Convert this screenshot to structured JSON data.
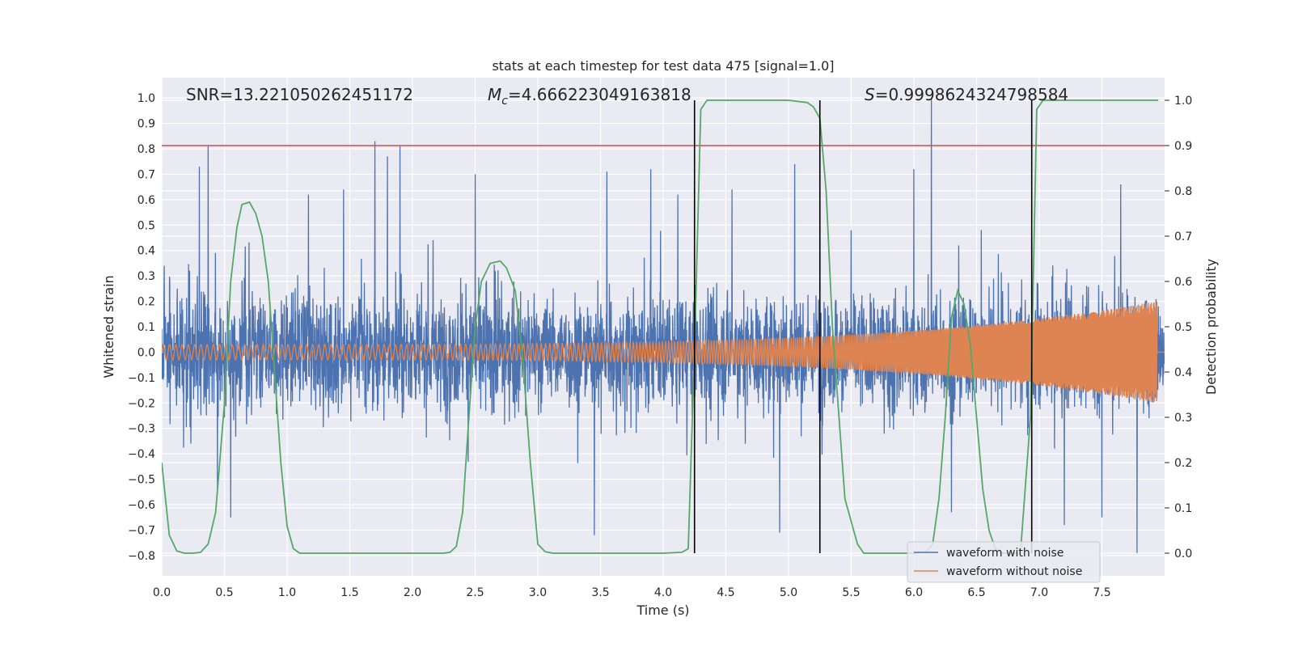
{
  "chart_data": {
    "type": "line",
    "title": "stats at each timestep for test data 475 [signal=1.0]",
    "xlabel": "Time (s)",
    "ylabel": "Whitened strain",
    "ylabel_right": "Detection probability",
    "xlim": [
      0.0,
      8.0
    ],
    "ylim": [
      -0.88,
      1.08
    ],
    "ylim_right": [
      -0.05,
      1.05
    ],
    "x_ticks": [
      "0.0",
      "0.5",
      "1.0",
      "1.5",
      "2.0",
      "2.5",
      "3.0",
      "3.5",
      "4.0",
      "4.5",
      "5.0",
      "5.5",
      "6.0",
      "6.5",
      "7.0",
      "7.5"
    ],
    "x_tick_values": [
      0.0,
      0.5,
      1.0,
      1.5,
      2.0,
      2.5,
      3.0,
      3.5,
      4.0,
      4.5,
      5.0,
      5.5,
      6.0,
      6.5,
      7.0,
      7.5
    ],
    "y_ticks": [
      "1.0",
      "0.9",
      "0.8",
      "0.7",
      "0.6",
      "0.5",
      "0.4",
      "0.3",
      "0.2",
      "0.1",
      "0.0",
      "−0.1",
      "−0.2",
      "−0.3",
      "−0.4",
      "−0.5",
      "−0.6",
      "−0.7",
      "−0.8"
    ],
    "y_tick_values": [
      1.0,
      0.9,
      0.8,
      0.7,
      0.6,
      0.5,
      0.4,
      0.3,
      0.2,
      0.1,
      0.0,
      -0.1,
      -0.2,
      -0.3,
      -0.4,
      -0.5,
      -0.6,
      -0.7,
      -0.8
    ],
    "y_ticks_right": [
      "1.0",
      "0.9",
      "0.8",
      "0.7",
      "0.6",
      "0.5",
      "0.4",
      "0.3",
      "0.2",
      "0.1",
      "0.0"
    ],
    "y_tick_values_right": [
      1.0,
      0.9,
      0.8,
      0.7,
      0.6,
      0.5,
      0.4,
      0.3,
      0.2,
      0.1,
      0.0
    ],
    "grid": true,
    "background": "#eaeaf2",
    "annotations": {
      "snr": "SNR=13.221050262451172",
      "mc_symbol": "M",
      "mc_sub": "c",
      "mc_value": "=4.666223049163818",
      "s_symbol": "S",
      "s_value": "=0.9998624324798584"
    },
    "threshold": {
      "value": 0.9,
      "axis": "right",
      "color": "#c44e52"
    },
    "vertical_lines": {
      "x": [
        4.25,
        5.25,
        6.94
      ],
      "color": "#000000"
    },
    "legend": {
      "position": "lower-right",
      "entries": [
        {
          "label": "waveform with noise",
          "color": "#4c72b0"
        },
        {
          "label": "waveform without noise",
          "color": "#dd8452"
        }
      ]
    },
    "series": [
      {
        "name": "waveform with noise",
        "axis": "left",
        "color": "#4c72b0",
        "kind": "noise",
        "x_range": [
          0.0,
          8.0
        ],
        "typical_envelope": [
          -0.45,
          0.45
        ],
        "peaks": [
          {
            "x": 0.02,
            "y": 0.34
          },
          {
            "x": 0.3,
            "y": 0.73
          },
          {
            "x": 0.37,
            "y": 0.81
          },
          {
            "x": 0.55,
            "y": -0.65
          },
          {
            "x": 1.17,
            "y": 0.62
          },
          {
            "x": 1.45,
            "y": 0.64
          },
          {
            "x": 1.7,
            "y": 0.83
          },
          {
            "x": 1.8,
            "y": 0.77
          },
          {
            "x": 1.9,
            "y": 0.81
          },
          {
            "x": 2.5,
            "y": 0.7
          },
          {
            "x": 3.45,
            "y": -0.72
          },
          {
            "x": 3.55,
            "y": 0.71
          },
          {
            "x": 3.9,
            "y": 0.72
          },
          {
            "x": 4.55,
            "y": 0.64
          },
          {
            "x": 4.93,
            "y": -0.71
          },
          {
            "x": 5.05,
            "y": 0.74
          },
          {
            "x": 5.5,
            "y": 0.48
          },
          {
            "x": 6.14,
            "y": 1.0
          },
          {
            "x": 6.0,
            "y": 0.72
          },
          {
            "x": 6.3,
            "y": -0.63
          },
          {
            "x": 7.2,
            "y": -0.68
          },
          {
            "x": 7.5,
            "y": -0.65
          },
          {
            "x": 7.78,
            "y": -0.79
          },
          {
            "x": 7.65,
            "y": 0.66
          }
        ]
      },
      {
        "name": "waveform without noise",
        "axis": "left",
        "color": "#dd8452",
        "kind": "chirp",
        "x_range": [
          0.0,
          7.94
        ],
        "amplitude_start": 0.03,
        "amplitude_end": 0.2,
        "freq_start_hz": 20,
        "freq_end_hz": 180,
        "after_merger_value": 0.0,
        "end_x": 8.0
      },
      {
        "name": "detection probability",
        "axis": "right",
        "color": "#55a868",
        "kind": "line",
        "x": [
          0.0,
          0.06,
          0.12,
          0.18,
          0.25,
          0.31,
          0.37,
          0.43,
          0.5,
          0.55,
          0.6,
          0.64,
          0.7,
          0.75,
          0.8,
          0.85,
          0.9,
          0.95,
          1.0,
          1.05,
          1.1,
          1.5,
          2.0,
          2.25,
          2.3,
          2.35,
          2.4,
          2.45,
          2.5,
          2.55,
          2.62,
          2.7,
          2.75,
          2.82,
          2.88,
          2.94,
          3.0,
          3.06,
          3.12,
          3.5,
          4.0,
          4.15,
          4.2,
          4.25,
          4.3,
          4.35,
          5.0,
          5.15,
          5.2,
          5.25,
          5.3,
          5.35,
          5.45,
          5.55,
          5.6,
          5.65,
          5.7,
          6.0,
          6.1,
          6.15,
          6.2,
          6.25,
          6.3,
          6.35,
          6.4,
          6.45,
          6.5,
          6.55,
          6.6,
          6.65,
          6.7,
          6.85,
          6.93,
          6.98,
          7.03,
          7.5,
          7.95
        ],
        "y": [
          0.2,
          0.04,
          0.005,
          0.0,
          0.0,
          0.002,
          0.02,
          0.09,
          0.33,
          0.6,
          0.72,
          0.77,
          0.775,
          0.75,
          0.7,
          0.6,
          0.4,
          0.2,
          0.06,
          0.01,
          0.0,
          0.0,
          0.0,
          0.0,
          0.002,
          0.015,
          0.09,
          0.3,
          0.5,
          0.6,
          0.64,
          0.645,
          0.63,
          0.58,
          0.43,
          0.2,
          0.02,
          0.003,
          0.0,
          0.0,
          0.0,
          0.002,
          0.01,
          0.45,
          0.98,
          1.0,
          1.0,
          0.995,
          0.985,
          0.96,
          0.8,
          0.5,
          0.12,
          0.02,
          0.0,
          0.0,
          0.0,
          0.0,
          0.003,
          0.02,
          0.12,
          0.3,
          0.52,
          0.58,
          0.55,
          0.46,
          0.3,
          0.14,
          0.05,
          0.01,
          0.0,
          0.0,
          0.3,
          0.98,
          1.0,
          1.0,
          1.0
        ]
      }
    ]
  }
}
